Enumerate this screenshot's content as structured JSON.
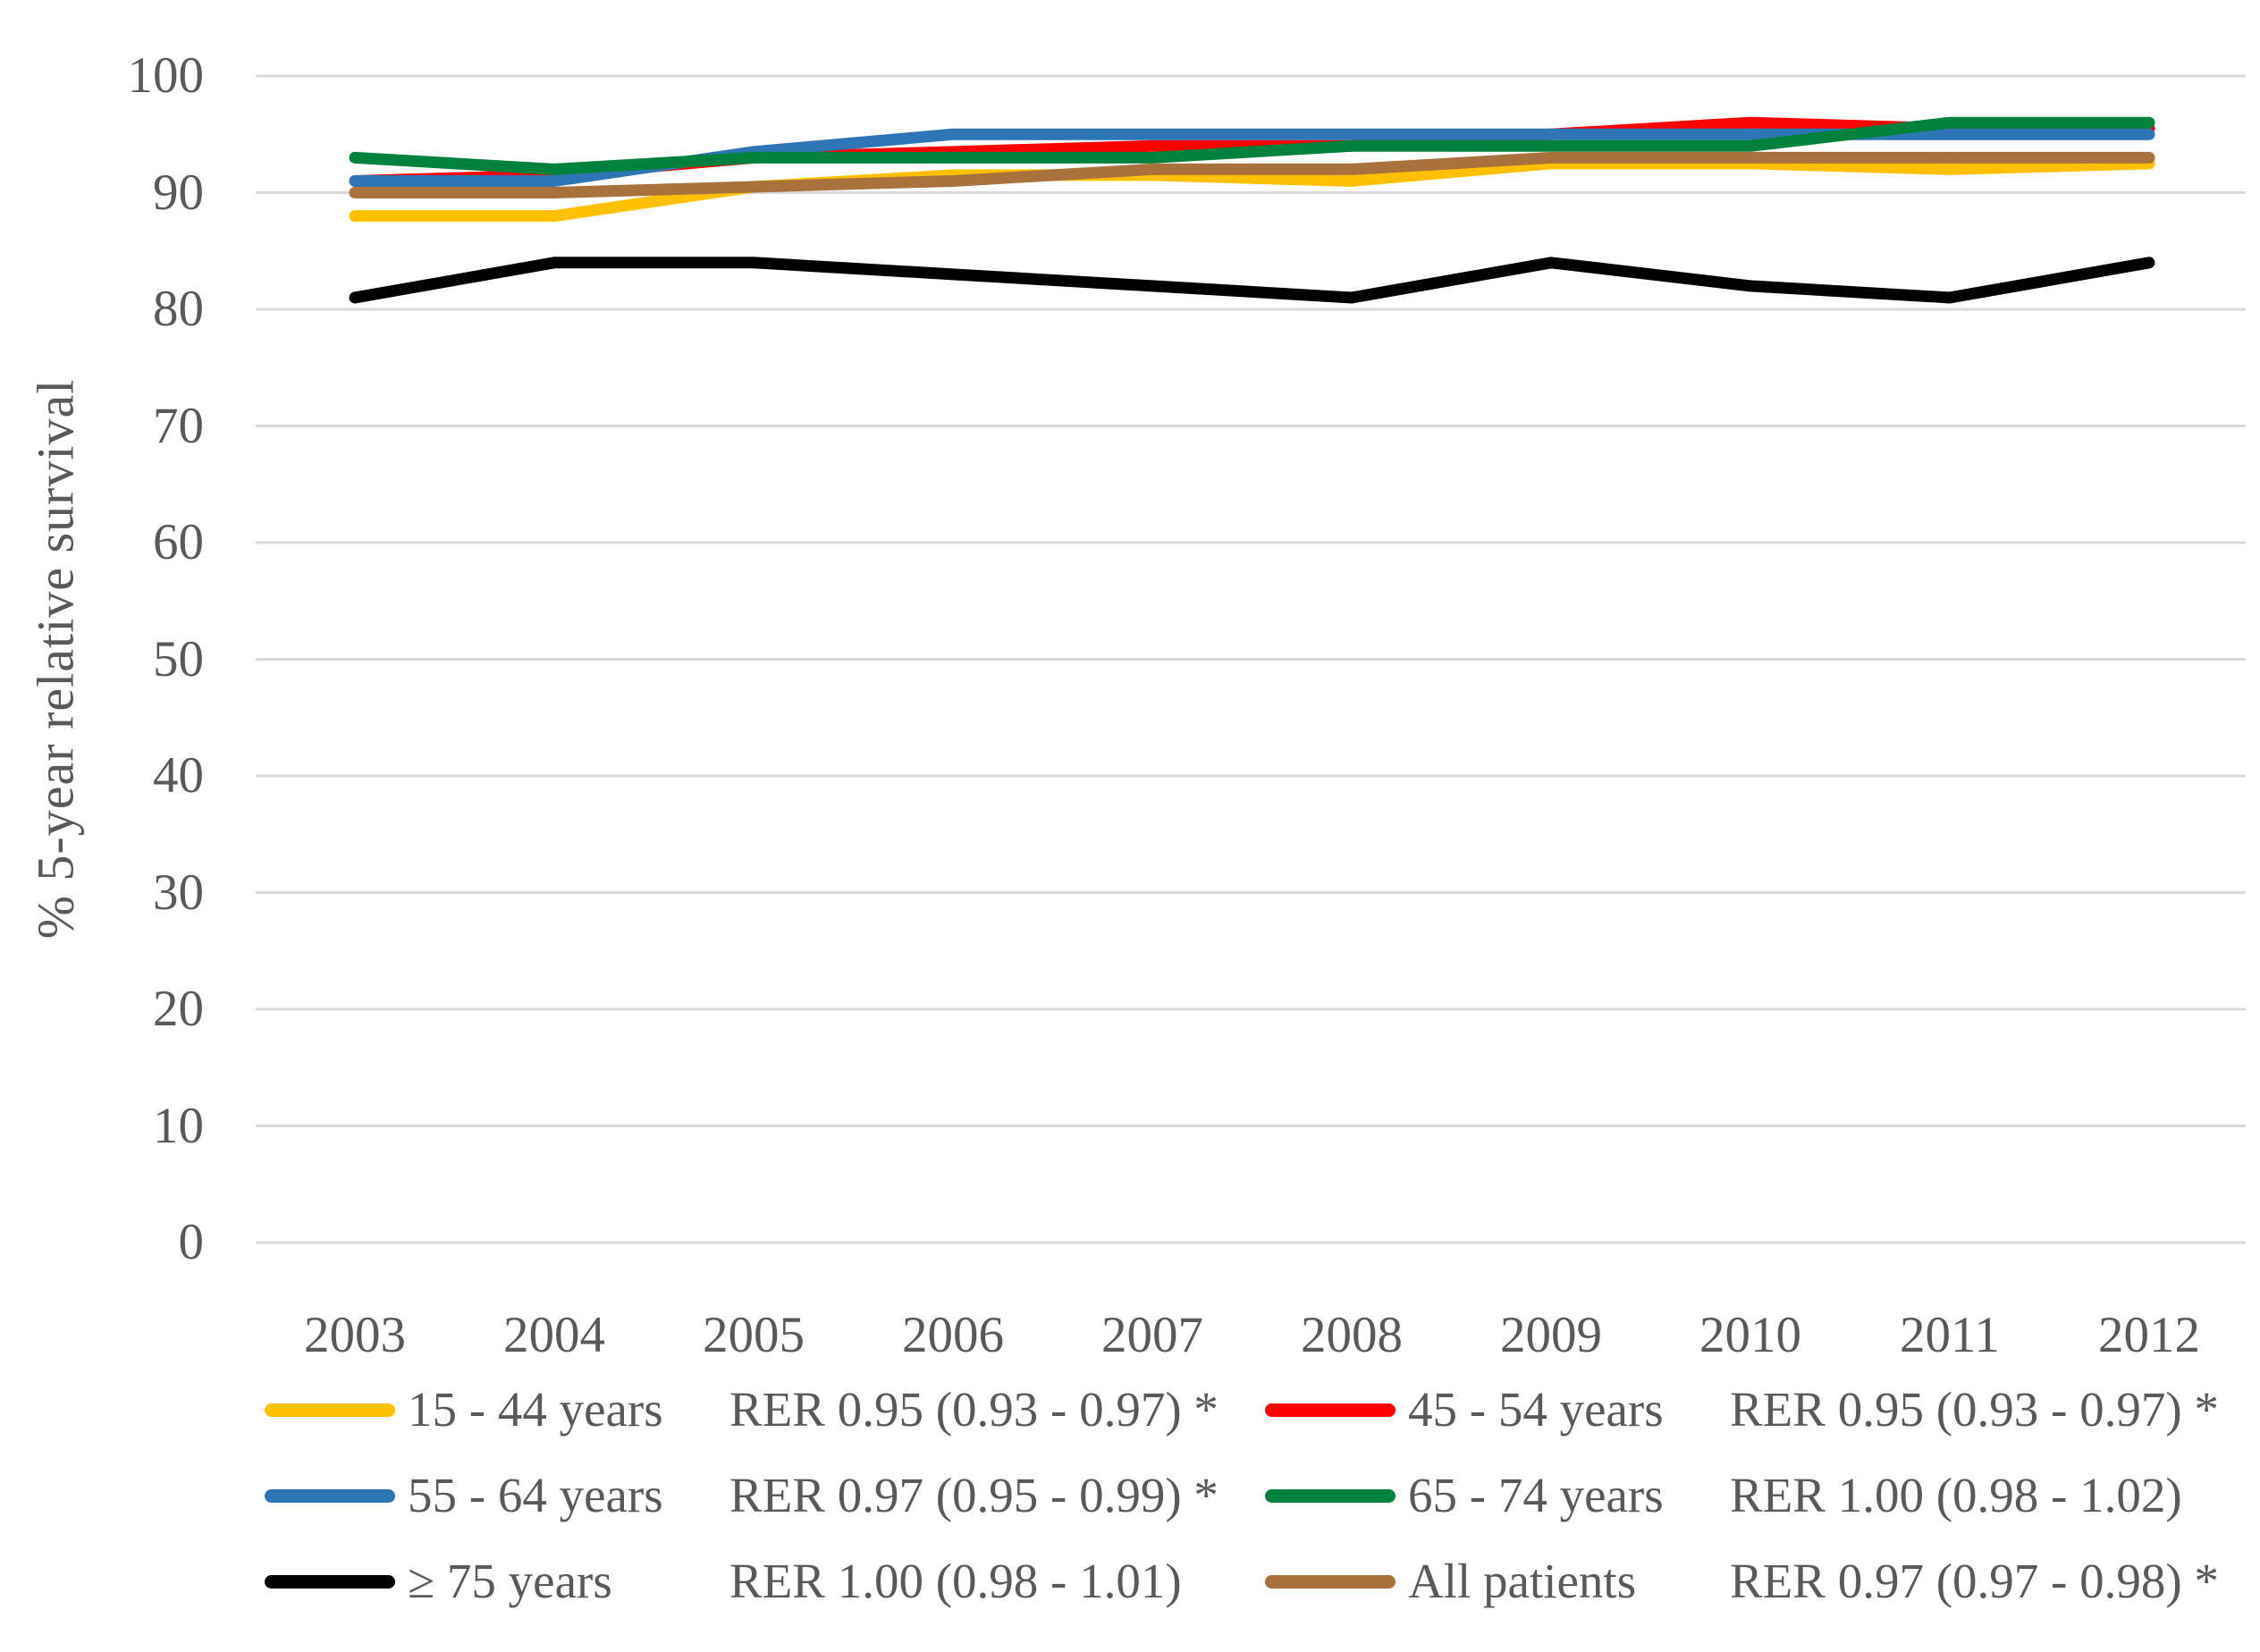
{
  "colors": {
    "background": "#FFFFFF",
    "text": "#595959",
    "gridline": "#D9D9D9"
  },
  "chart_data": {
    "type": "line",
    "title": "",
    "xlabel": "",
    "ylabel": "% 5-year relative survival",
    "ylim": [
      0,
      100
    ],
    "grid": true,
    "legend_position": "bottom",
    "x": [
      "2003",
      "2004",
      "2005",
      "2006",
      "2007",
      "2008",
      "2009",
      "2010",
      "2011",
      "2012"
    ],
    "yticks": [
      0,
      10,
      20,
      30,
      40,
      50,
      60,
      70,
      80,
      90,
      100
    ],
    "series": [
      {
        "name": "15 - 44 years",
        "rer": "RER 0.95 (0.93 - 0.97) *",
        "color": "#FFC000",
        "values": [
          88,
          88,
          90.5,
          91.5,
          91.5,
          91,
          92.5,
          92.5,
          92,
          92.5
        ]
      },
      {
        "name": "45 - 54 years",
        "rer": "RER 0.95 (0.93 - 0.97) *",
        "color": "#FF0000",
        "values": [
          91,
          91.5,
          93,
          93.5,
          94,
          94,
          95,
          96,
          95.5,
          95.5
        ]
      },
      {
        "name": "55 - 64 years",
        "rer": "RER 0.97 (0.95 - 0.99) *",
        "color": "#2E75B6",
        "values": [
          91,
          91,
          93.5,
          95,
          95,
          95,
          95,
          95,
          95,
          95
        ]
      },
      {
        "name": "65 - 74 years",
        "rer": "RER 1.00 (0.98 - 1.02)",
        "color": "#00823C",
        "values": [
          93,
          92,
          93,
          93,
          93,
          94,
          94,
          94,
          96,
          96
        ]
      },
      {
        "name": "≥ 75 years",
        "rer": "RER 1.00 (0.98 - 1.01)",
        "color": "#000000",
        "values": [
          81,
          84,
          84,
          83,
          82,
          81,
          84,
          82,
          81,
          84
        ]
      },
      {
        "name": "All patients",
        "rer": "RER 0.97 (0.97 - 0.98) *",
        "color": "#A9713B",
        "values": [
          90,
          90,
          90.5,
          91,
          92,
          92,
          93,
          93,
          93,
          93
        ]
      }
    ],
    "draw_order": [
      "15 - 44 years",
      "45 - 54 years",
      "55 - 64 years",
      "65 - 74 years",
      "All patients",
      "≥ 75 years"
    ],
    "legend_layout": [
      [
        "15 - 44 years",
        "45 - 54 years"
      ],
      [
        "55 - 64 years",
        "65 - 74 years"
      ],
      [
        "≥ 75 years",
        "All patients"
      ]
    ]
  }
}
